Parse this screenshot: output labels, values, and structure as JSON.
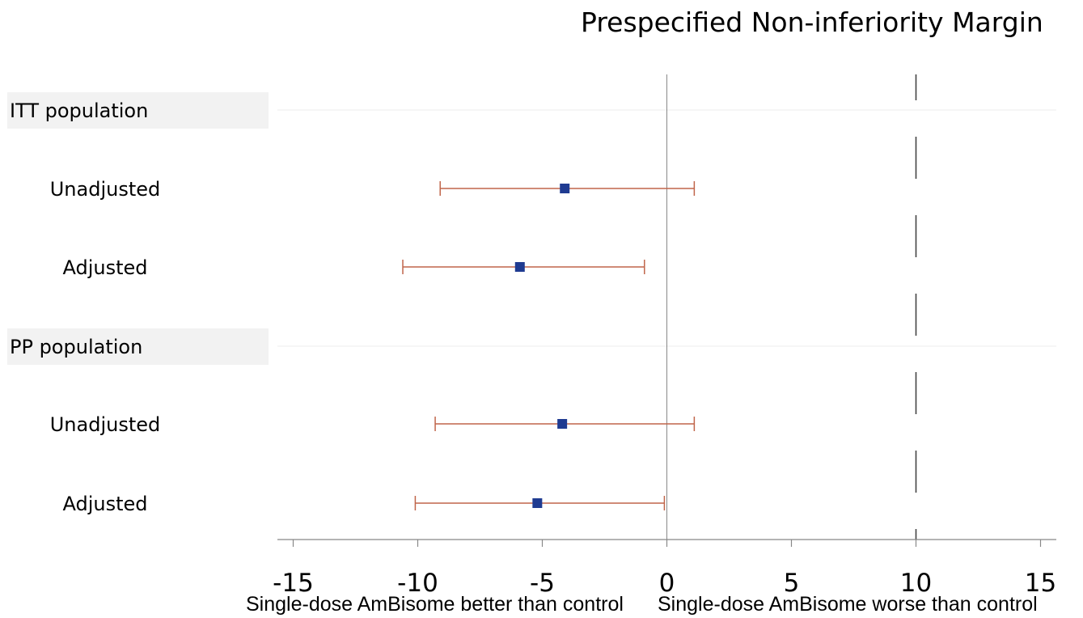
{
  "chart_data": {
    "type": "forest",
    "title": "Prespecified Non-inferiority Margin",
    "x_annotation_left": "Single-dose AmBisome better than control",
    "x_annotation_right": "Single-dose AmBisome worse than control",
    "xlim": [
      -15.5,
      15.5
    ],
    "xticks": [
      -15,
      -10,
      -5,
      0,
      5,
      10,
      15
    ],
    "reference_line": 0,
    "margin_line": 10,
    "grid": false,
    "rows": [
      {
        "label": "ITT population",
        "header": true
      },
      {
        "label": "Unadjusted",
        "estimate": -4.1,
        "lower": -9.1,
        "upper": 1.1
      },
      {
        "label": "Adjusted",
        "estimate": -5.9,
        "lower": -10.6,
        "upper": -0.9
      },
      {
        "label": "PP population",
        "header": true
      },
      {
        "label": "Unadjusted",
        "estimate": -4.2,
        "lower": -9.3,
        "upper": 1.1
      },
      {
        "label": "Adjusted",
        "estimate": -5.2,
        "lower": -10.1,
        "upper": -0.1
      }
    ],
    "colors": {
      "point": "#1f3b91",
      "ci": "#c0654a",
      "header_bg": "#f2f2f2",
      "axis": "#888888",
      "margin": "#444444"
    }
  }
}
